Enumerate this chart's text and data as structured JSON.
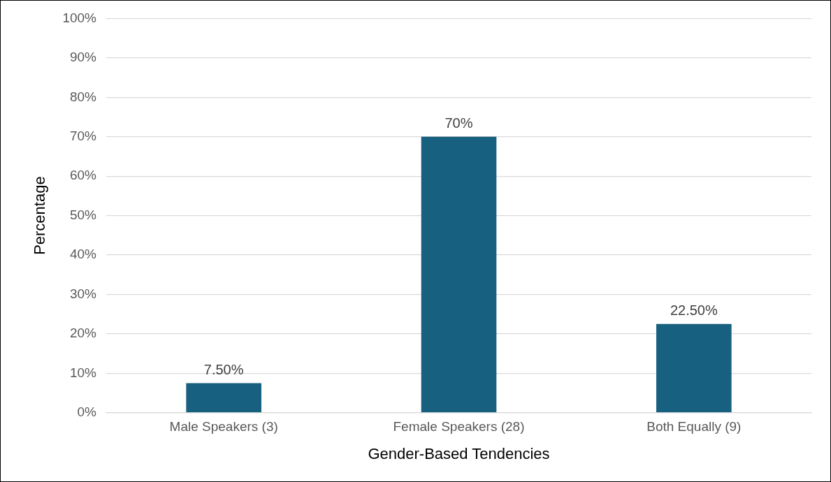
{
  "chart_data": {
    "type": "bar",
    "xlabel": "Gender-Based Tendencies",
    "ylabel": "Percentage",
    "categories": [
      "Male Speakers (3)",
      "Female Speakers (28)",
      "Both Equally (9)"
    ],
    "values": [
      7.5,
      70,
      22.5
    ],
    "color": "#17607f",
    "value_labels": [
      "7.50%",
      "70%",
      "22.50%"
    ],
    "ylim": [
      0,
      100
    ],
    "yticks": [
      {
        "value": 0,
        "label": "0%"
      },
      {
        "value": 10,
        "label": "10%"
      },
      {
        "value": 20,
        "label": "20%"
      },
      {
        "value": 30,
        "label": "30%"
      },
      {
        "value": 40,
        "label": "40%"
      },
      {
        "value": 50,
        "label": "50%"
      },
      {
        "value": 60,
        "label": "60%"
      },
      {
        "value": 70,
        "label": "70%"
      },
      {
        "value": 80,
        "label": "80%"
      },
      {
        "value": 90,
        "label": "90%"
      },
      {
        "value": 100,
        "label": "100%"
      }
    ],
    "grid": "y"
  }
}
